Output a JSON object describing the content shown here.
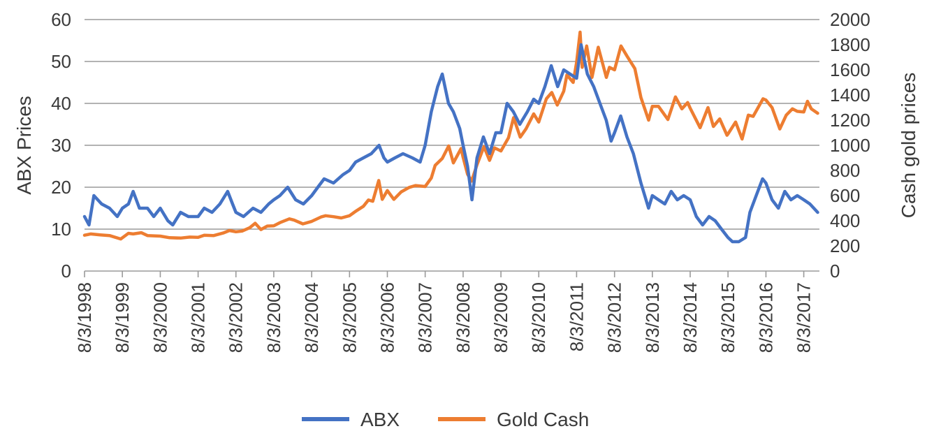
{
  "chart_data": {
    "type": "line",
    "title": "",
    "ylabel_left": "ABX Prices",
    "ylabel_right": "Cash gold prices",
    "xlabel": "",
    "x_ticks": [
      "8/3/1998",
      "8/3/1999",
      "8/3/2000",
      "8/3/2001",
      "8/3/2002",
      "8/3/2003",
      "8/3/2004",
      "8/3/2005",
      "8/3/2006",
      "8/3/2007",
      "8/3/2008",
      "8/3/2009",
      "8/3/2010",
      "8/3/2011",
      "8/3/2012",
      "8/3/2013",
      "8/3/2014",
      "8/3/2015",
      "8/3/2016",
      "8/3/2017"
    ],
    "x_range": [
      "8/3/1998",
      "1/1/2018"
    ],
    "ylim_left": [
      0,
      60
    ],
    "yticks_left": [
      "0",
      "10",
      "20",
      "30",
      "40",
      "50",
      "60"
    ],
    "ylim_right": [
      0,
      2000
    ],
    "yticks_right": [
      "0",
      "200",
      "400",
      "600",
      "800",
      "1000",
      "1200",
      "1400",
      "1600",
      "1800",
      "2000"
    ],
    "grid": true,
    "legend_position": "bottom",
    "series": [
      {
        "name": "ABX",
        "axis": "left",
        "color": "#4472c4",
        "points": [
          [
            "8/3/1998",
            13
          ],
          [
            "9/15/1998",
            11
          ],
          [
            "11/1/1998",
            18
          ],
          [
            "1/15/1999",
            16
          ],
          [
            "4/1/1999",
            15
          ],
          [
            "6/15/1999",
            13
          ],
          [
            "8/3/1999",
            15
          ],
          [
            "10/1/1999",
            16
          ],
          [
            "11/15/1999",
            19
          ],
          [
            "1/15/2000",
            15
          ],
          [
            "4/1/2000",
            15
          ],
          [
            "6/1/2000",
            13
          ],
          [
            "8/3/2000",
            15
          ],
          [
            "10/15/2000",
            12
          ],
          [
            "12/1/2000",
            11
          ],
          [
            "2/15/2001",
            14
          ],
          [
            "5/1/2001",
            13
          ],
          [
            "8/3/2001",
            13
          ],
          [
            "10/1/2001",
            15
          ],
          [
            "12/15/2001",
            14
          ],
          [
            "3/1/2002",
            16
          ],
          [
            "5/15/2002",
            19
          ],
          [
            "7/1/2002",
            16
          ],
          [
            "8/3/2002",
            14
          ],
          [
            "10/15/2002",
            13
          ],
          [
            "1/15/2003",
            15
          ],
          [
            "4/1/2003",
            14
          ],
          [
            "6/15/2003",
            16
          ],
          [
            "8/3/2003",
            17
          ],
          [
            "10/1/2003",
            18
          ],
          [
            "12/15/2003",
            20
          ],
          [
            "3/1/2004",
            17
          ],
          [
            "5/15/2004",
            16
          ],
          [
            "8/3/2004",
            18
          ],
          [
            "10/1/2004",
            20
          ],
          [
            "12/1/2004",
            22
          ],
          [
            "3/1/2005",
            21
          ],
          [
            "6/1/2005",
            23
          ],
          [
            "8/3/2005",
            24
          ],
          [
            "10/1/2005",
            26
          ],
          [
            "12/15/2005",
            27
          ],
          [
            "3/1/2006",
            28
          ],
          [
            "5/15/2006",
            30
          ],
          [
            "7/1/2006",
            27
          ],
          [
            "8/3/2006",
            26
          ],
          [
            "10/15/2006",
            27
          ],
          [
            "1/1/2007",
            28
          ],
          [
            "4/1/2007",
            27
          ],
          [
            "6/15/2007",
            26
          ],
          [
            "8/3/2007",
            30
          ],
          [
            "10/1/2007",
            38
          ],
          [
            "12/1/2007",
            44
          ],
          [
            "1/15/2008",
            47
          ],
          [
            "3/15/2008",
            40
          ],
          [
            "5/1/2008",
            38
          ],
          [
            "7/1/2008",
            34
          ],
          [
            "8/3/2008",
            30
          ],
          [
            "9/15/2008",
            25
          ],
          [
            "10/27/2008",
            17
          ],
          [
            "12/15/2008",
            27
          ],
          [
            "2/15/2009",
            32
          ],
          [
            "4/15/2009",
            28
          ],
          [
            "6/15/2009",
            33
          ],
          [
            "8/3/2009",
            33
          ],
          [
            "10/1/2009",
            40
          ],
          [
            "12/1/2009",
            38
          ],
          [
            "2/1/2010",
            35
          ],
          [
            "4/15/2010",
            38
          ],
          [
            "6/15/2010",
            41
          ],
          [
            "8/3/2010",
            40
          ],
          [
            "10/1/2010",
            44
          ],
          [
            "12/1/2010",
            49
          ],
          [
            "2/1/2011",
            44
          ],
          [
            "4/1/2011",
            48
          ],
          [
            "6/1/2011",
            47
          ],
          [
            "8/3/2011",
            46
          ],
          [
            "9/15/2011",
            54
          ],
          [
            "11/15/2011",
            47
          ],
          [
            "1/15/2012",
            44
          ],
          [
            "3/15/2012",
            40
          ],
          [
            "5/15/2012",
            36
          ],
          [
            "7/1/2012",
            31
          ],
          [
            "8/3/2012",
            33
          ],
          [
            "10/1/2012",
            37
          ],
          [
            "12/1/2012",
            32
          ],
          [
            "2/1/2013",
            28
          ],
          [
            "4/15/2013",
            21
          ],
          [
            "6/27/2013",
            15
          ],
          [
            "8/3/2013",
            18
          ],
          [
            "10/1/2013",
            17
          ],
          [
            "12/1/2013",
            16
          ],
          [
            "2/1/2014",
            19
          ],
          [
            "4/1/2014",
            17
          ],
          [
            "6/1/2014",
            18
          ],
          [
            "8/3/2014",
            17
          ],
          [
            "10/1/2014",
            13
          ],
          [
            "12/1/2014",
            11
          ],
          [
            "2/1/2015",
            13
          ],
          [
            "4/1/2015",
            12
          ],
          [
            "6/1/2015",
            10
          ],
          [
            "8/3/2015",
            8
          ],
          [
            "9/15/2015",
            7
          ],
          [
            "11/15/2015",
            7
          ],
          [
            "1/19/2016",
            8
          ],
          [
            "3/1/2016",
            14
          ],
          [
            "5/1/2016",
            18
          ],
          [
            "7/1/2016",
            22
          ],
          [
            "8/3/2016",
            21
          ],
          [
            "10/1/2016",
            17
          ],
          [
            "12/1/2016",
            15
          ],
          [
            "2/1/2017",
            19
          ],
          [
            "4/1/2017",
            17
          ],
          [
            "6/1/2017",
            18
          ],
          [
            "8/3/2017",
            17
          ],
          [
            "10/1/2017",
            16
          ],
          [
            "12/15/2017",
            14
          ]
        ]
      },
      {
        "name": "Gold Cash",
        "axis": "right",
        "color": "#ed7d31",
        "points": [
          [
            "8/3/1998",
            285
          ],
          [
            "10/1/1998",
            295
          ],
          [
            "1/1/1999",
            288
          ],
          [
            "4/1/1999",
            282
          ],
          [
            "7/19/1999",
            255
          ],
          [
            "9/30/1999",
            300
          ],
          [
            "11/15/1999",
            295
          ],
          [
            "2/1/2000",
            305
          ],
          [
            "4/1/2000",
            282
          ],
          [
            "8/3/2000",
            278
          ],
          [
            "11/1/2000",
            265
          ],
          [
            "2/15/2001",
            262
          ],
          [
            "5/15/2001",
            270
          ],
          [
            "8/3/2001",
            268
          ],
          [
            "10/1/2001",
            285
          ],
          [
            "1/1/2002",
            282
          ],
          [
            "4/1/2002",
            302
          ],
          [
            "6/1/2002",
            322
          ],
          [
            "8/3/2002",
            312
          ],
          [
            "10/1/2002",
            318
          ],
          [
            "12/15/2002",
            345
          ],
          [
            "2/5/2003",
            380
          ],
          [
            "4/1/2003",
            330
          ],
          [
            "6/1/2003",
            358
          ],
          [
            "8/3/2003",
            360
          ],
          [
            "10/1/2003",
            385
          ],
          [
            "12/31/2003",
            415
          ],
          [
            "2/15/2004",
            405
          ],
          [
            "5/10/2004",
            375
          ],
          [
            "8/3/2004",
            395
          ],
          [
            "11/1/2004",
            430
          ],
          [
            "12/15/2004",
            440
          ],
          [
            "3/1/2005",
            432
          ],
          [
            "5/15/2005",
            422
          ],
          [
            "8/3/2005",
            440
          ],
          [
            "10/1/2005",
            475
          ],
          [
            "12/15/2005",
            515
          ],
          [
            "2/1/2006",
            565
          ],
          [
            "3/15/2006",
            555
          ],
          [
            "5/12/2006",
            720
          ],
          [
            "6/15/2006",
            570
          ],
          [
            "8/3/2006",
            640
          ],
          [
            "10/5/2006",
            570
          ],
          [
            "12/15/2006",
            630
          ],
          [
            "3/1/2007",
            665
          ],
          [
            "5/1/2007",
            680
          ],
          [
            "8/3/2007",
            672
          ],
          [
            "10/1/2007",
            740
          ],
          [
            "11/7/2007",
            840
          ],
          [
            "1/15/2008",
            895
          ],
          [
            "3/17/2008",
            995
          ],
          [
            "5/1/2008",
            860
          ],
          [
            "7/15/2008",
            975
          ],
          [
            "8/3/2008",
            905
          ],
          [
            "9/15/2008",
            770
          ],
          [
            "10/24/2008",
            715
          ],
          [
            "12/15/2008",
            845
          ],
          [
            "2/20/2009",
            990
          ],
          [
            "4/15/2009",
            880
          ],
          [
            "6/1/2009",
            980
          ],
          [
            "8/3/2009",
            955
          ],
          [
            "10/15/2009",
            1060
          ],
          [
            "12/3/2009",
            1220
          ],
          [
            "2/5/2010",
            1065
          ],
          [
            "4/1/2010",
            1130
          ],
          [
            "6/15/2010",
            1250
          ],
          [
            "8/3/2010",
            1185
          ],
          [
            "10/15/2010",
            1370
          ],
          [
            "12/7/2010",
            1420
          ],
          [
            "1/28/2011",
            1320
          ],
          [
            "4/1/2011",
            1430
          ],
          [
            "5/1/2011",
            1560
          ],
          [
            "7/1/2011",
            1500
          ],
          [
            "8/3/2011",
            1660
          ],
          [
            "9/6/2011",
            1900
          ],
          [
            "9/26/2011",
            1620
          ],
          [
            "11/8/2011",
            1790
          ],
          [
            "12/29/2011",
            1540
          ],
          [
            "2/28/2012",
            1780
          ],
          [
            "5/16/2012",
            1540
          ],
          [
            "6/15/2012",
            1620
          ],
          [
            "8/3/2012",
            1600
          ],
          [
            "10/4/2012",
            1790
          ],
          [
            "12/1/2012",
            1710
          ],
          [
            "2/15/2013",
            1610
          ],
          [
            "4/15/2013",
            1380
          ],
          [
            "6/28/2013",
            1200
          ],
          [
            "8/3/2013",
            1310
          ],
          [
            "10/1/2013",
            1310
          ],
          [
            "12/31/2013",
            1205
          ],
          [
            "3/14/2014",
            1385
          ],
          [
            "5/15/2014",
            1290
          ],
          [
            "7/10/2014",
            1340
          ],
          [
            "8/3/2014",
            1295
          ],
          [
            "11/7/2014",
            1140
          ],
          [
            "1/22/2015",
            1300
          ],
          [
            "3/15/2015",
            1150
          ],
          [
            "5/15/2015",
            1210
          ],
          [
            "7/24/2015",
            1080
          ],
          [
            "8/3/2015",
            1090
          ],
          [
            "10/15/2015",
            1185
          ],
          [
            "12/17/2015",
            1050
          ],
          [
            "2/15/2016",
            1240
          ],
          [
            "4/1/2016",
            1230
          ],
          [
            "7/6/2016",
            1370
          ],
          [
            "8/3/2016",
            1360
          ],
          [
            "10/1/2016",
            1300
          ],
          [
            "12/15/2016",
            1130
          ],
          [
            "2/15/2017",
            1240
          ],
          [
            "4/15/2017",
            1290
          ],
          [
            "6/1/2017",
            1270
          ],
          [
            "8/3/2017",
            1265
          ],
          [
            "9/8/2017",
            1350
          ],
          [
            "10/15/2017",
            1290
          ],
          [
            "12/15/2017",
            1255
          ]
        ]
      }
    ]
  }
}
